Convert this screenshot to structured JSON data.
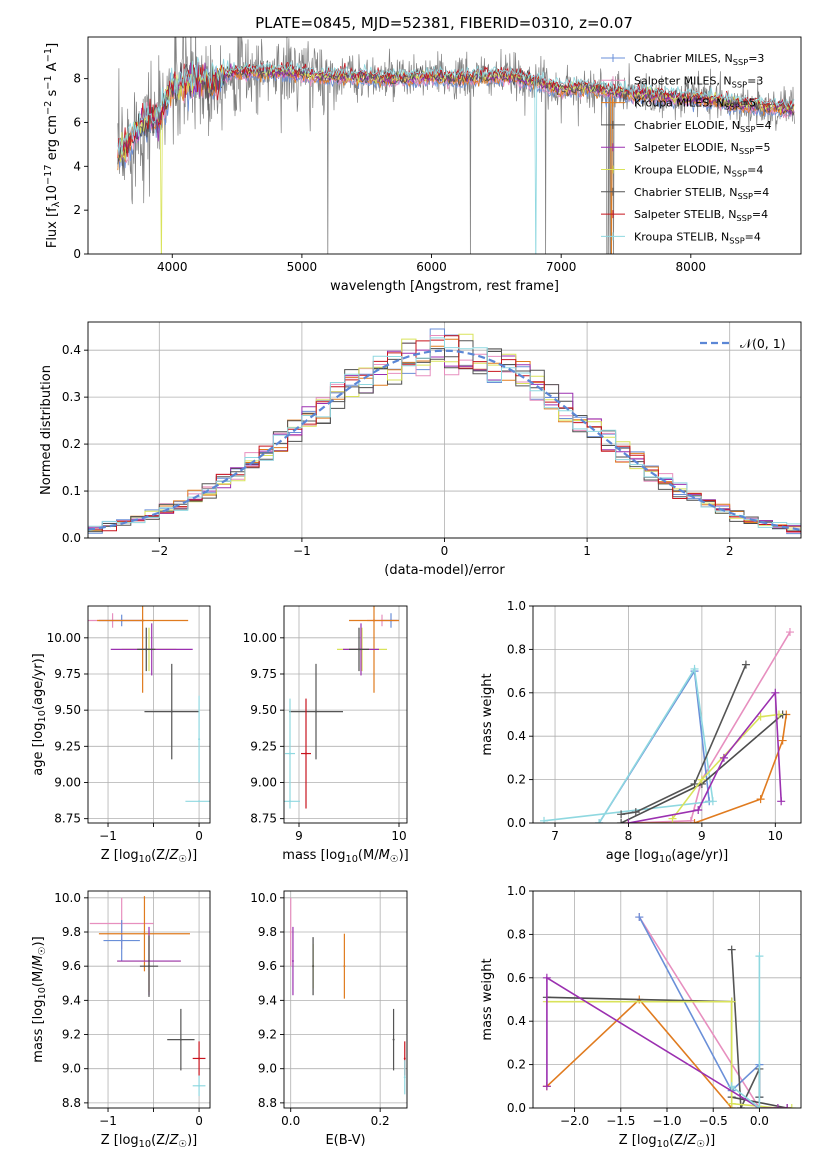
{
  "figure_title": "PLATE=0845, MJD=52381, FIBERID=0310, z=0.07",
  "series_colors": [
    "#6a8fd8",
    "#e78fbf",
    "#e07b1f",
    "#4d4d4d",
    "#9b30b0",
    "#d9e35a",
    "#555555",
    "#c8141e",
    "#8fd8e0"
  ],
  "chart_data": [
    {
      "type": "line",
      "xlabel": "wavelength [Angstrom, rest frame]",
      "ylabel": "Flux [f_λ10^-17 erg cm^-2 s^-1 A^-1]",
      "xlim": [
        3350,
        8850
      ],
      "ylim": [
        0,
        9.9
      ],
      "xticks": [
        4000,
        5000,
        6000,
        7000,
        8000
      ],
      "yticks": [
        0,
        2,
        4,
        6,
        8
      ],
      "legend_position": "top-right",
      "series": [
        {
          "name": "Chabrier MILES, N_SSP=3"
        },
        {
          "name": "Salpeter MILES, N_SSP=3"
        },
        {
          "name": "Kroupa MILES, N_SSP=5"
        },
        {
          "name": "Chabrier ELODIE, N_SSP=4"
        },
        {
          "name": "Salpeter ELODIE, N_SSP=5"
        },
        {
          "name": "Kroupa ELODIE, N_SSP=4"
        },
        {
          "name": "Chabrier STELIB, N_SSP=4"
        },
        {
          "name": "Salpeter STELIB, N_SSP=4"
        },
        {
          "name": "Kroupa STELIB, N_SSP=4"
        }
      ],
      "model_continuum": {
        "x": [
          3600,
          3650,
          3700,
          3750,
          3800,
          3850,
          3900,
          3950,
          4000,
          4100,
          4200,
          4300,
          4400,
          4500,
          4600,
          4700,
          4800,
          4900,
          5000,
          5200,
          5400,
          5600,
          5800,
          6000,
          6200,
          6400,
          6600,
          6800,
          7000,
          7200,
          7400,
          7600,
          7800,
          8000,
          8200,
          8400,
          8600,
          8800
        ],
        "y": [
          4.6,
          5.0,
          5.4,
          5.9,
          6.1,
          6.2,
          6.1,
          6.9,
          7.6,
          7.8,
          8.0,
          7.8,
          8.2,
          8.3,
          8.3,
          8.3,
          8.3,
          8.3,
          8.2,
          8.1,
          8.1,
          8.0,
          8.0,
          8.1,
          8.0,
          8.1,
          8.1,
          7.9,
          7.5,
          7.6,
          7.4,
          7.3,
          7.2,
          7.1,
          7.0,
          6.8,
          6.7,
          6.6
        ]
      }
    },
    {
      "type": "line",
      "xlabel": "(data-model)/error",
      "ylabel": "Normed distribution",
      "xlim": [
        -2.5,
        2.5
      ],
      "ylim": [
        0,
        0.46
      ],
      "xticks": [
        -2,
        -1,
        0,
        1,
        2
      ],
      "yticks": [
        0.0,
        0.1,
        0.2,
        0.3,
        0.4
      ],
      "legend_position": "top-right",
      "reference_curve": {
        "name": "𝒩(0, 1)",
        "mean": 0,
        "sigma": 1
      },
      "histogram_bin_width": 0.1
    },
    {
      "type": "scatter",
      "xlabel": "Z [log10(Z/Z☉)]",
      "ylabel": "age [log10(age/yr)]",
      "xlim": [
        -1.22,
        0.12
      ],
      "ylim": [
        8.72,
        10.22
      ],
      "xticks": [
        -1,
        -0.5,
        0
      ],
      "xticklabels": [
        "−1",
        "",
        "0"
      ],
      "yticks": [
        8.75,
        9.0,
        9.25,
        9.5,
        9.75,
        10.0
      ],
      "points": [
        {
          "s": 1,
          "x": -0.95,
          "y": 10.12,
          "xerr": 0.35,
          "yerr": 0.05
        },
        {
          "s": 0,
          "x": -0.85,
          "y": 10.12,
          "xerr": 0.25,
          "yerr": 0.04
        },
        {
          "s": 2,
          "x": -0.62,
          "y": 10.12,
          "xerr": 0.5,
          "yerr": 0.5
        },
        {
          "s": 5,
          "x": -0.55,
          "y": 9.92,
          "xerr": 0.3,
          "yerr": 0.15
        },
        {
          "s": 4,
          "x": -0.52,
          "y": 9.92,
          "xerr": 0.45,
          "yerr": 0.18
        },
        {
          "s": 3,
          "x": -0.58,
          "y": 9.92,
          "xerr": 0.1,
          "yerr": 0.15
        },
        {
          "s": 6,
          "x": -0.3,
          "y": 9.49,
          "xerr": 0.3,
          "yerr": 0.33
        },
        {
          "s": 8,
          "x": 0.0,
          "y": 9.3,
          "xerr": 0.0,
          "yerr": 0.3
        },
        {
          "s": 8,
          "x": 0.0,
          "y": 8.87,
          "xerr": 0.15,
          "yerr": 0.0
        }
      ]
    },
    {
      "type": "scatter",
      "xlabel": "mass [log10(M/M☉)]",
      "ylabel": "",
      "xlim": [
        8.85,
        10.08
      ],
      "ylim": [
        8.72,
        10.22
      ],
      "xticks": [
        9,
        10
      ],
      "yticks": [
        8.75,
        9.0,
        9.25,
        9.5,
        9.75,
        10.0
      ],
      "points": [
        {
          "s": 1,
          "x": 9.83,
          "y": 10.12,
          "xerr": 0.15,
          "yerr": 0.04
        },
        {
          "s": 0,
          "x": 9.92,
          "y": 10.12,
          "xerr": 0.08,
          "yerr": 0.05
        },
        {
          "s": 2,
          "x": 9.75,
          "y": 10.12,
          "xerr": 0.25,
          "yerr": 0.5
        },
        {
          "s": 5,
          "x": 9.63,
          "y": 9.92,
          "xerr": 0.25,
          "yerr": 0.15
        },
        {
          "s": 4,
          "x": 9.62,
          "y": 9.92,
          "xerr": 0.18,
          "yerr": 0.18
        },
        {
          "s": 3,
          "x": 9.6,
          "y": 9.92,
          "xerr": 0.1,
          "yerr": 0.15
        },
        {
          "s": 6,
          "x": 9.17,
          "y": 9.49,
          "xerr": 0.27,
          "yerr": 0.33
        },
        {
          "s": 7,
          "x": 9.07,
          "y": 9.2,
          "xerr": 0.05,
          "yerr": 0.38
        },
        {
          "s": 8,
          "x": 8.91,
          "y": 9.2,
          "xerr": 0.05,
          "yerr": 0.38
        },
        {
          "s": 8,
          "x": 8.91,
          "y": 8.87,
          "xerr": 0.1,
          "yerr": 0.0
        }
      ]
    },
    {
      "type": "line",
      "xlabel": "age [log10(age/yr)]",
      "ylabel": "mass weight",
      "xlim": [
        6.7,
        10.35
      ],
      "ylim": [
        0,
        1.0
      ],
      "xticks": [
        7,
        8,
        9,
        10
      ],
      "yticks": [
        0.0,
        0.2,
        0.4,
        0.6,
        0.8,
        1.0
      ],
      "series": [
        {
          "s": 1,
          "x": [
            8.0,
            8.85,
            9.0,
            10.2
          ],
          "y": [
            0.0,
            0.01,
            0.2,
            0.88
          ]
        },
        {
          "s": 0,
          "x": [
            7.6,
            8.9,
            9.1
          ],
          "y": [
            0.0,
            0.7,
            0.1
          ]
        },
        {
          "s": 8,
          "x": [
            7.6,
            8.9,
            9.15,
            6.85
          ],
          "y": [
            0.0,
            0.71,
            0.1,
            0.01
          ]
        },
        {
          "s": 2,
          "x": [
            8.0,
            8.9,
            9.8,
            10.1,
            10.15
          ],
          "y": [
            0.0,
            0.0,
            0.11,
            0.38,
            0.5
          ]
        },
        {
          "s": 6,
          "x": [
            7.9,
            8.1,
            8.9,
            9.6
          ],
          "y": [
            0.04,
            0.05,
            0.18,
            0.73
          ]
        },
        {
          "s": 3,
          "x": [
            7.9,
            9.0,
            10.1
          ],
          "y": [
            0.0,
            0.18,
            0.5
          ]
        },
        {
          "s": 5,
          "x": [
            8.6,
            9.0,
            9.8,
            10.05
          ],
          "y": [
            0.02,
            0.2,
            0.49,
            0.5
          ]
        },
        {
          "s": 4,
          "x": [
            8.0,
            8.95,
            9.3,
            10.0,
            10.08
          ],
          "y": [
            0.0,
            0.06,
            0.3,
            0.6,
            0.1
          ]
        }
      ]
    },
    {
      "type": "scatter",
      "xlabel": "Z [log10(Z/Z☉)]",
      "ylabel": "mass [log10(M/M☉)]",
      "xlim": [
        -1.22,
        0.12
      ],
      "ylim": [
        8.77,
        10.04
      ],
      "xticks": [
        -1,
        -0.5,
        0
      ],
      "xticklabels": [
        "−1",
        "",
        "0"
      ],
      "yticks": [
        8.8,
        9.0,
        9.2,
        9.4,
        9.6,
        9.8,
        10.0
      ],
      "points": [
        {
          "s": 1,
          "x": -0.85,
          "y": 9.85,
          "xerr": 0.35,
          "yerr": 0.15
        },
        {
          "s": 0,
          "x": -0.85,
          "y": 9.75,
          "xerr": 0.2,
          "yerr": 0.12
        },
        {
          "s": 2,
          "x": -0.6,
          "y": 9.79,
          "xerr": 0.5,
          "yerr": 0.22
        },
        {
          "s": 5,
          "x": -0.55,
          "y": 9.63,
          "xerr": 0.35,
          "yerr": 0.18
        },
        {
          "s": 4,
          "x": -0.55,
          "y": 9.63,
          "xerr": 0.35,
          "yerr": 0.2
        },
        {
          "s": 3,
          "x": -0.55,
          "y": 9.6,
          "xerr": 0.1,
          "yerr": 0.18
        },
        {
          "s": 6,
          "x": -0.2,
          "y": 9.17,
          "xerr": 0.15,
          "yerr": 0.18
        },
        {
          "s": 7,
          "x": 0.0,
          "y": 9.06,
          "xerr": 0.07,
          "yerr": 0.1
        },
        {
          "s": 8,
          "x": 0.0,
          "y": 8.9,
          "xerr": 0.07,
          "yerr": 0.06
        }
      ]
    },
    {
      "type": "scatter",
      "xlabel": "E(B-V)",
      "ylabel": "",
      "xlim": [
        -0.015,
        0.26
      ],
      "ylim": [
        8.77,
        10.04
      ],
      "xticks": [
        0.0,
        0.2
      ],
      "yticks": [
        8.8,
        9.0,
        9.2,
        9.4,
        9.6,
        9.8,
        10.0
      ],
      "points": [
        {
          "s": 1,
          "x": 0.0,
          "y": 9.8,
          "xerr": 0.0,
          "yerr": 0.2
        },
        {
          "s": 4,
          "x": 0.005,
          "y": 9.63,
          "xerr": 0.0,
          "yerr": 0.2
        },
        {
          "s": 5,
          "x": 0.05,
          "y": 9.6,
          "xerr": 0.0,
          "yerr": 0.13
        },
        {
          "s": 3,
          "x": 0.05,
          "y": 9.6,
          "xerr": 0.0,
          "yerr": 0.17
        },
        {
          "s": 2,
          "x": 0.12,
          "y": 9.6,
          "xerr": 0.0,
          "yerr": 0.19
        },
        {
          "s": 6,
          "x": 0.23,
          "y": 9.17,
          "xerr": 0.0,
          "yerr": 0.18
        },
        {
          "s": 7,
          "x": 0.255,
          "y": 9.06,
          "xerr": 0.0,
          "yerr": 0.1
        },
        {
          "s": 8,
          "x": 0.255,
          "y": 8.95,
          "xerr": 0.0,
          "yerr": 0.1
        }
      ]
    },
    {
      "type": "line",
      "xlabel": "Z [log10(Z/Z☉)]",
      "ylabel": "mass weight",
      "xlim": [
        -2.45,
        0.45
      ],
      "ylim": [
        0,
        1.0
      ],
      "xticks": [
        -2.0,
        -1.5,
        -1.0,
        -0.5,
        0.0
      ],
      "yticks": [
        0.0,
        0.2,
        0.4,
        0.6,
        0.8,
        1.0
      ],
      "series": [
        {
          "s": 1,
          "x": [
            -1.3,
            0.0,
            0.3
          ],
          "y": [
            0.88,
            0.0,
            0.0
          ]
        },
        {
          "s": 0,
          "x": [
            -1.3,
            -0.3,
            0.0,
            0.0
          ],
          "y": [
            0.88,
            0.08,
            0.2,
            0.05
          ]
        },
        {
          "s": 2,
          "x": [
            -2.3,
            -1.3,
            -0.3
          ],
          "y": [
            0.1,
            0.5,
            0.0
          ]
        },
        {
          "s": 6,
          "x": [
            -0.3,
            -0.2,
            0.0,
            0.0
          ],
          "y": [
            0.73,
            0.0,
            0.18,
            0.05
          ]
        },
        {
          "s": 3,
          "x": [
            -2.3,
            -0.3,
            -0.3,
            0.3
          ],
          "y": [
            0.51,
            0.49,
            0.05,
            0.0
          ]
        },
        {
          "s": 5,
          "x": [
            -2.3,
            -0.3,
            -0.3,
            0.2,
            0.35
          ],
          "y": [
            0.49,
            0.49,
            0.02,
            0.0,
            0.0
          ]
        },
        {
          "s": 4,
          "x": [
            -2.3,
            -2.3,
            0.0,
            0.2,
            0.3
          ],
          "y": [
            0.1,
            0.6,
            0.0,
            0.0,
            0.0
          ]
        },
        {
          "s": 8,
          "x": [
            0.0,
            0.0,
            -0.3
          ],
          "y": [
            0.7,
            0.0,
            0.1
          ]
        }
      ]
    }
  ]
}
